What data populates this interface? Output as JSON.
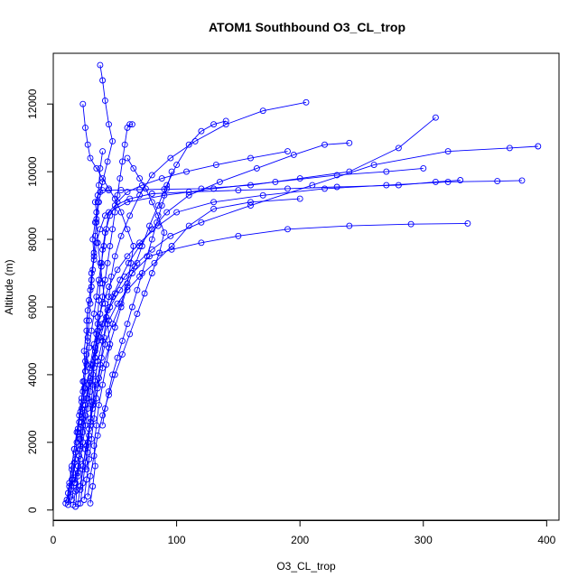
{
  "chart_data": {
    "type": "line",
    "title": "ATOM1 Southbound O3_CL_trop",
    "xlabel": "O3_CL_trop",
    "ylabel": "Altitude (m)",
    "xlim": [
      0,
      410
    ],
    "ylim": [
      -300,
      13500
    ],
    "x_ticks": [
      0,
      100,
      200,
      300,
      400
    ],
    "y_ticks": [
      0,
      2000,
      4000,
      6000,
      8000,
      10000,
      12000
    ],
    "marker": "open-circle",
    "line_color": "#0000ff",
    "series": [
      {
        "x": [
          12,
          14,
          16,
          18,
          20,
          22,
          24,
          26,
          25,
          27,
          28,
          30,
          31,
          33,
          32,
          34,
          35,
          34,
          36,
          38,
          40,
          45,
          55,
          70,
          90,
          120,
          160,
          200,
          240,
          280,
          310
        ],
        "y": [
          150,
          600,
          1100,
          1700,
          2300,
          2900,
          3500,
          4100,
          4700,
          5300,
          5900,
          6500,
          7000,
          7500,
          8000,
          8500,
          8800,
          9100,
          9300,
          9400,
          9450,
          9450,
          9460,
          9470,
          9480,
          9500,
          9600,
          9800,
          10000,
          10700,
          11600
        ]
      },
      {
        "x": [
          10,
          12,
          15,
          17,
          19,
          21,
          23,
          24,
          26,
          28,
          27,
          29,
          31,
          33,
          35,
          38,
          42,
          50,
          62,
          80,
          110,
          150,
          190,
          230,
          280,
          310,
          330
        ],
        "y": [
          200,
          500,
          900,
          1400,
          2000,
          2600,
          3200,
          3800,
          4400,
          5000,
          5600,
          6200,
          6800,
          7400,
          7900,
          8300,
          8700,
          9000,
          9200,
          9350,
          9400,
          9450,
          9500,
          9550,
          9600,
          9700,
          9750
        ]
      },
      {
        "x": [
          15,
          17,
          20,
          22,
          24,
          26,
          28,
          30,
          33,
          36,
          40,
          45,
          52,
          60,
          70,
          85,
          100,
          130,
          170,
          220,
          270,
          320,
          360,
          380
        ],
        "y": [
          300,
          800,
          1300,
          1900,
          2500,
          3100,
          3700,
          4300,
          4900,
          5500,
          6100,
          6600,
          7100,
          7500,
          7900,
          8400,
          8800,
          9100,
          9300,
          9500,
          9600,
          9700,
          9720,
          9740
        ]
      },
      {
        "x": [
          20,
          22,
          24,
          27,
          30,
          32,
          35,
          38,
          42,
          48,
          55,
          60,
          63,
          65,
          60,
          55,
          50,
          45,
          40,
          35,
          30,
          28,
          26,
          24
        ],
        "y": [
          180,
          700,
          1300,
          1900,
          2500,
          3100,
          3700,
          4300,
          4900,
          5500,
          6100,
          6700,
          7300,
          7800,
          8300,
          8800,
          9200,
          9500,
          9800,
          10100,
          10400,
          10800,
          11300,
          12000
        ]
      },
      {
        "x": [
          12,
          13,
          15,
          17,
          20,
          23,
          26,
          30,
          34,
          38,
          44,
          50,
          58,
          68,
          80,
          95,
          120,
          160,
          210,
          260,
          320,
          370,
          393
        ],
        "y": [
          250,
          700,
          1200,
          1800,
          2400,
          3000,
          3600,
          4200,
          4800,
          5400,
          5900,
          6400,
          6900,
          7300,
          7700,
          8100,
          8500,
          9000,
          9600,
          10200,
          10600,
          10700,
          10750
        ]
      },
      {
        "x": [
          30,
          32,
          34,
          33,
          35,
          37,
          40,
          43,
          46,
          44,
          42,
          40,
          38,
          36,
          35,
          37,
          40,
          44,
          48,
          45,
          42,
          40,
          38
        ],
        "y": [
          200,
          700,
          1300,
          1900,
          2500,
          3100,
          3700,
          4300,
          4900,
          5500,
          6100,
          6700,
          7300,
          7900,
          8500,
          9100,
          9700,
          10300,
          10900,
          11400,
          12100,
          12700,
          13150
        ]
      },
      {
        "x": [
          16,
          18,
          20,
          22,
          24,
          26,
          28,
          30,
          32,
          34,
          36,
          40,
          46,
          54,
          64,
          78,
          96,
          120,
          150,
          190,
          240,
          290,
          336
        ],
        "y": [
          150,
          550,
          1000,
          1500,
          2000,
          2500,
          3000,
          3500,
          4000,
          4500,
          5000,
          5500,
          6000,
          6500,
          7000,
          7500,
          7700,
          7900,
          8100,
          8300,
          8400,
          8450,
          8470
        ]
      },
      {
        "x": [
          22,
          24,
          26,
          28,
          30,
          32,
          34,
          36,
          40,
          45,
          52,
          60,
          70,
          82,
          96,
          110,
          130,
          160,
          200
        ],
        "y": [
          200,
          800,
          1400,
          2000,
          2600,
          3200,
          3800,
          4400,
          5000,
          5600,
          6100,
          6500,
          6900,
          7300,
          7800,
          8400,
          8900,
          9100,
          9200
        ]
      },
      {
        "x": [
          14,
          16,
          18,
          21,
          24,
          27,
          30,
          34,
          38,
          43,
          48,
          54,
          61,
          70,
          80,
          92,
          110,
          135,
          165,
          195,
          220,
          240
        ],
        "y": [
          400,
          900,
          1500,
          2100,
          2700,
          3300,
          3900,
          4500,
          5100,
          5700,
          6300,
          6800,
          7300,
          7800,
          8300,
          8800,
          9300,
          9700,
          10100,
          10500,
          10800,
          10850
        ]
      },
      {
        "x": [
          25,
          27,
          29,
          31,
          33,
          35,
          37,
          39,
          41,
          43,
          45,
          47,
          50,
          55,
          62,
          70,
          80,
          95,
          115,
          140,
          170,
          205
        ],
        "y": [
          300,
          900,
          1500,
          2100,
          2700,
          3300,
          3900,
          4500,
          5100,
          5700,
          6300,
          6900,
          7500,
          8100,
          8700,
          9300,
          9900,
          10400,
          10900,
          11400,
          11800,
          12050
        ]
      },
      {
        "x": [
          18,
          19,
          20,
          21,
          22,
          23,
          24,
          25,
          26,
          27,
          28,
          29,
          30,
          31,
          32,
          33,
          34,
          35,
          36,
          37,
          38,
          40
        ],
        "y": [
          100,
          600,
          1100,
          1600,
          2100,
          2600,
          3100,
          3600,
          4100,
          4600,
          5100,
          5600,
          6100,
          6600,
          7100,
          7600,
          8100,
          8600,
          9100,
          9600,
          10100,
          10600
        ]
      },
      {
        "x": [
          28,
          30,
          33,
          36,
          40,
          45,
          50,
          56,
          62,
          68,
          74,
          80,
          86,
          90,
          85,
          80,
          75,
          70,
          65,
          60
        ],
        "y": [
          400,
          1000,
          1600,
          2200,
          2800,
          3400,
          4000,
          4600,
          5200,
          5800,
          6400,
          7000,
          7600,
          8200,
          8700,
          9100,
          9500,
          9800,
          10100,
          10400
        ]
      },
      {
        "x": [
          11,
          13,
          15,
          17,
          19,
          21,
          23,
          25,
          27,
          29,
          31,
          33,
          35,
          37,
          39,
          41,
          43,
          45,
          60,
          90,
          130,
          180,
          230,
          270,
          300
        ],
        "y": [
          300,
          800,
          1300,
          1800,
          2300,
          2800,
          3300,
          3800,
          4300,
          4800,
          5300,
          5800,
          6300,
          6800,
          7300,
          7800,
          8300,
          8800,
          9100,
          9300,
          9500,
          9700,
          9900,
          10000,
          10100
        ]
      },
      {
        "x": [
          40,
          42,
          45,
          48,
          52,
          56,
          60,
          64,
          68,
          72,
          76,
          80,
          84,
          88,
          92,
          96
        ],
        "y": [
          2500,
          3000,
          3500,
          4000,
          4500,
          5000,
          5500,
          6000,
          6500,
          7000,
          7500,
          8000,
          8500,
          9000,
          9500,
          10000
        ]
      },
      {
        "x": [
          22,
          24,
          26,
          29,
          32,
          36,
          40,
          45,
          50,
          55,
          60,
          66,
          72,
          78,
          85,
          92,
          100,
          110,
          120,
          130,
          140
        ],
        "y": [
          600,
          1200,
          1800,
          2400,
          3000,
          3600,
          4200,
          4800,
          5400,
          6000,
          6600,
          7200,
          7800,
          8400,
          9000,
          9600,
          10200,
          10800,
          11200,
          11400,
          11500
        ]
      },
      {
        "x": [
          18,
          20,
          22,
          24,
          26,
          28,
          30,
          32,
          34,
          36,
          38,
          40,
          42,
          44,
          46,
          48,
          50,
          52,
          54,
          56,
          58,
          60,
          62,
          64
        ],
        "y": [
          800,
          1300,
          1800,
          2300,
          2800,
          3300,
          3800,
          4300,
          4800,
          5300,
          5800,
          6300,
          6800,
          7300,
          7800,
          8300,
          8800,
          9300,
          9800,
          10300,
          10800,
          11300,
          11400,
          11400
        ]
      },
      {
        "x": [
          27,
          28,
          29,
          30,
          31,
          32,
          33,
          34,
          35,
          36,
          37,
          38,
          39,
          40,
          42,
          46,
          52,
          60,
          72,
          88,
          108,
          132,
          160,
          190
        ],
        "y": [
          1200,
          1700,
          2200,
          2700,
          3200,
          3700,
          4200,
          4700,
          5200,
          5700,
          6200,
          6700,
          7200,
          7700,
          8200,
          8700,
          9100,
          9400,
          9600,
          9800,
          10000,
          10200,
          10400,
          10600
        ]
      }
    ]
  }
}
